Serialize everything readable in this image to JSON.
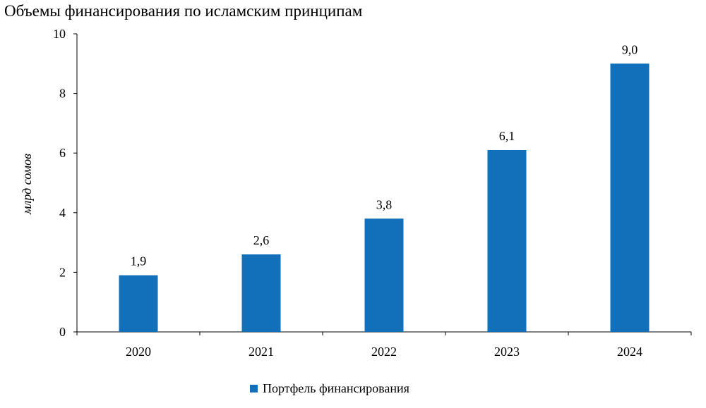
{
  "chart_data": {
    "type": "bar",
    "title": "Объемы финансирования по исламским принципам",
    "xlabel": "",
    "ylabel": "млрд сомов",
    "categories": [
      "2020",
      "2021",
      "2022",
      "2023",
      "2024"
    ],
    "series": [
      {
        "name": "Портфель финансирования",
        "color": "#1170B9",
        "values": [
          1.9,
          2.6,
          3.8,
          6.1,
          9.0
        ],
        "labels": [
          "1,9",
          "2,6",
          "3,8",
          "6,1",
          "9,0"
        ]
      }
    ],
    "ylim": [
      0,
      10
    ],
    "yticks": [
      0,
      2,
      4,
      6,
      8,
      10
    ],
    "grid": false,
    "legend_position": "bottom"
  }
}
